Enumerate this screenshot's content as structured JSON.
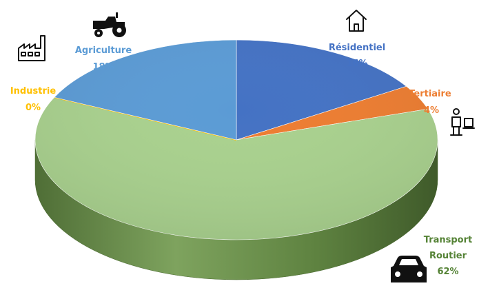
{
  "chart_data": {
    "type": "pie",
    "title": "",
    "slices": [
      {
        "key": "res",
        "label": "Résidentiel",
        "value": 16,
        "value_label": "16%",
        "color": "#4472C4",
        "icon": "house-icon"
      },
      {
        "key": "ter",
        "label": "Tertiaire",
        "value": 4,
        "value_label": "4%",
        "color": "#ED7D31",
        "icon": "office-worker-icon"
      },
      {
        "key": "tra",
        "label": "Transport Routier",
        "label_lines": [
          "Transport",
          "Routier"
        ],
        "value": 62,
        "value_label": "62%",
        "color": "#A9D18E",
        "icon": "car-icon"
      },
      {
        "key": "ind",
        "label": "Industrie",
        "value": 0,
        "value_label": "0%",
        "color": "#FFC000",
        "icon": "factory-icon"
      },
      {
        "key": "agr",
        "label": "Agriculture",
        "value": 18,
        "value_label": "18%",
        "color": "#5B9BD5",
        "icon": "tractor-icon"
      }
    ],
    "style": "3d-pie",
    "legend": "none"
  }
}
